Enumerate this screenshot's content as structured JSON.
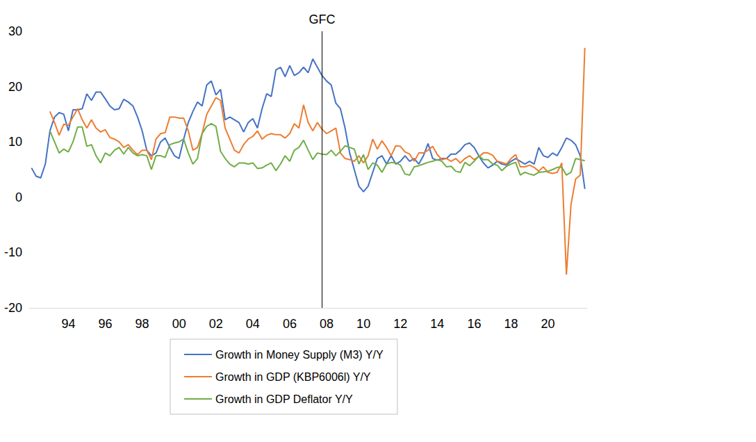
{
  "chart_data": {
    "type": "line",
    "categories": [
      null,
      null,
      null,
      null,
      null,
      null,
      null,
      null,
      "94",
      null,
      null,
      null,
      null,
      null,
      null,
      null,
      "96",
      null,
      null,
      null,
      null,
      null,
      null,
      null,
      "98",
      null,
      null,
      null,
      null,
      null,
      null,
      null,
      "00",
      null,
      null,
      null,
      null,
      null,
      null,
      null,
      "02",
      null,
      null,
      null,
      null,
      null,
      null,
      null,
      "04",
      null,
      null,
      null,
      null,
      null,
      null,
      null,
      "06",
      null,
      null,
      null,
      null,
      null,
      null,
      null,
      "08",
      null,
      null,
      null,
      null,
      null,
      null,
      null,
      "10",
      null,
      null,
      null,
      null,
      null,
      null,
      null,
      "12",
      null,
      null,
      null,
      null,
      null,
      null,
      null,
      "14",
      null,
      null,
      null,
      null,
      null,
      null,
      null,
      "16",
      null,
      null,
      null,
      null,
      null,
      null,
      null,
      "18",
      null,
      null,
      null,
      null,
      null,
      null,
      null,
      "20",
      null,
      null,
      null,
      null,
      null,
      null,
      null,
      null
    ],
    "series": [
      {
        "name": "Growth in Money Supply (M3) Y/Y",
        "color": "#4472c4",
        "values": [
          5.3,
          3.8,
          3.5,
          6,
          12,
          14.5,
          15.3,
          15,
          12,
          15.8,
          15.8,
          16,
          18.7,
          17.5,
          19,
          19,
          17.8,
          16.5,
          15.8,
          16,
          17.7,
          17.2,
          16.5,
          14.5,
          12,
          8.5,
          7.5,
          8,
          10,
          10.7,
          9,
          7.5,
          7,
          10.5,
          13.5,
          15.5,
          17.2,
          16.5,
          20.3,
          21,
          18.5,
          19.5,
          14,
          14.5,
          14,
          13.5,
          11.8,
          13.5,
          14.2,
          12.5,
          16,
          18.7,
          18.2,
          23,
          23.5,
          21.8,
          23.8,
          22,
          22.5,
          23.5,
          22.5,
          25,
          23.5,
          22,
          21,
          20.3,
          17,
          16,
          12.5,
          8,
          5,
          2,
          1,
          2,
          4.5,
          7,
          7.5,
          6,
          7.5,
          6,
          6.5,
          7.5,
          6.5,
          7,
          6,
          7.5,
          9.7,
          7,
          6.7,
          7,
          7,
          7.8,
          7.8,
          8.5,
          9.5,
          9.8,
          9,
          7.5,
          6.2,
          5.3,
          5.8,
          6.5,
          6,
          5.8,
          6.5,
          7,
          6.5,
          6,
          6.5,
          6,
          9,
          7.5,
          7.2,
          8,
          7.5,
          9,
          10.7,
          10.3,
          9.5,
          7.5,
          1.5
        ]
      },
      {
        "name": "Growth in GDP (KBP6006l) Y/Y",
        "color": "#ed7d31",
        "values": [
          null,
          null,
          null,
          null,
          15.5,
          13.5,
          11.2,
          13.2,
          13,
          14.5,
          16,
          14,
          12.5,
          14,
          12.5,
          11.8,
          12.2,
          10.8,
          10.5,
          10,
          9,
          9.5,
          8.5,
          7.7,
          8.5,
          8.5,
          6.8,
          10.5,
          11.5,
          11.7,
          14.5,
          14.5,
          14.3,
          14.3,
          12,
          8.5,
          9,
          11.5,
          15,
          16.5,
          18,
          17.5,
          12.5,
          10.5,
          8.5,
          8,
          9.5,
          10.5,
          11,
          12,
          10.5,
          11.2,
          11.5,
          11.3,
          11.3,
          10.7,
          11.5,
          13.3,
          12.5,
          16.7,
          13.5,
          12,
          13.5,
          12.3,
          11.5,
          12,
          12.5,
          8,
          7,
          6.8,
          6.5,
          7.5,
          6.2,
          7.5,
          10.5,
          8.7,
          10.2,
          9,
          7.5,
          9.3,
          9.2,
          8.2,
          7.8,
          6.5,
          8,
          8,
          8.5,
          9.2,
          7.7,
          6.8,
          7,
          6.5,
          7,
          6.2,
          7,
          7.5,
          6.8,
          7.3,
          8,
          8,
          7.6,
          6.5,
          6.3,
          6,
          7,
          7.7,
          5.5,
          5.5,
          5.8,
          5.4,
          4.7,
          5.5,
          4.5,
          4.3,
          4.5,
          6.2,
          -14,
          -1.3,
          3.3,
          4,
          27
        ]
      },
      {
        "name": "Growth in GDP Deflator Y/Y",
        "color": "#70ad47",
        "values": [
          null,
          null,
          null,
          null,
          12,
          10,
          8,
          8.7,
          8.2,
          10,
          12.7,
          12.7,
          9.2,
          9.5,
          7.5,
          6.2,
          8,
          7.5,
          8.5,
          9,
          7.8,
          9,
          8,
          7.5,
          7.7,
          7.5,
          5,
          7.5,
          7.5,
          7.2,
          9.5,
          9.8,
          10,
          10.5,
          8,
          6,
          7,
          11.5,
          12.8,
          13.3,
          12.8,
          8.3,
          7,
          6,
          5.5,
          6.2,
          6.2,
          6,
          6.2,
          5.2,
          5.3,
          5.8,
          6.2,
          4.8,
          6,
          7.5,
          6.5,
          8.5,
          9,
          10.3,
          8.5,
          6.8,
          8,
          7.8,
          7.7,
          8.5,
          7.5,
          8.3,
          9.3,
          9,
          8.7,
          6,
          7.7,
          5,
          6.2,
          5.8,
          4.5,
          6,
          6.3,
          6.2,
          5.8,
          4.2,
          4,
          5.5,
          5.7,
          6,
          6.3,
          6.5,
          6.8,
          6.5,
          5.5,
          5.6,
          4.7,
          4.5,
          6.3,
          5.7,
          6.5,
          7.5,
          6.8,
          6.8,
          6,
          5.8,
          4.8,
          5.6,
          6,
          6.3,
          4,
          4.5,
          4.2,
          4,
          4.5,
          4.6,
          4.7,
          5,
          5.4,
          5.4,
          4,
          4.5,
          7,
          6.8,
          6.6
        ]
      }
    ],
    "ylim": [
      -20,
      30
    ],
    "yticks": [
      -20,
      -10,
      0,
      10,
      20,
      30
    ],
    "annotations": [
      {
        "text": "GFC",
        "index": 63
      }
    ],
    "grid": false,
    "legend": "bottom"
  }
}
